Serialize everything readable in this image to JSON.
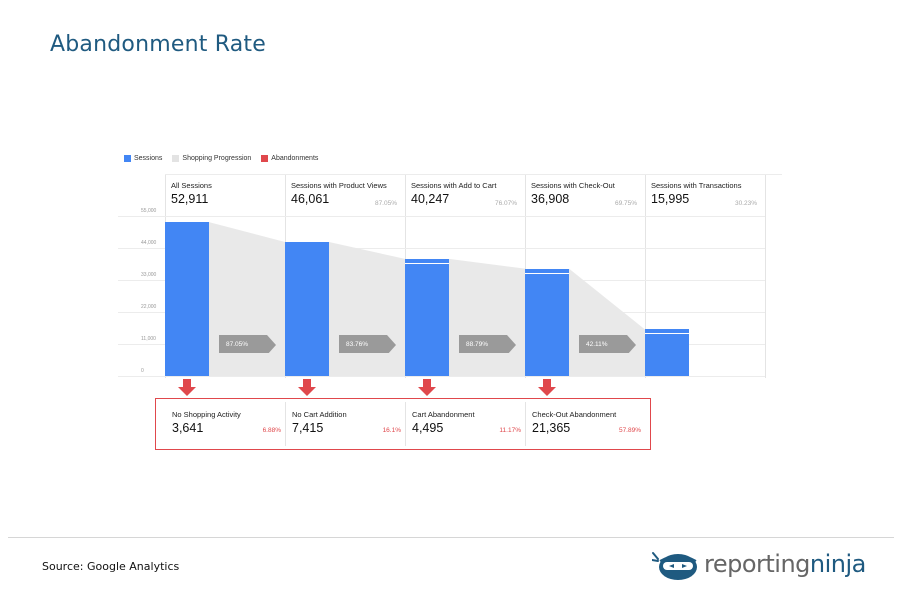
{
  "page": {
    "title": "Abandonment Rate",
    "source": "Source: Google Analytics"
  },
  "logo": {
    "part1": "reporting",
    "part2": "ninja",
    "icon": "ninja-icon"
  },
  "colors": {
    "sessions": "#4286f4",
    "progression": "#e8e8e8",
    "abandonments": "#e0484c",
    "title": "#1f5a80"
  },
  "chart_data": {
    "type": "bar",
    "legend": [
      "Sessions",
      "Shopping Progression",
      "Abandonments"
    ],
    "legend_position": "top-left",
    "y_ticks": [
      "0",
      "11,000",
      "22,000",
      "33,000",
      "44,000",
      "55,000"
    ],
    "ylim": [
      0,
      55000
    ],
    "grid": true,
    "stages": [
      {
        "name": "All Sessions",
        "value": "52,911",
        "v": 52911,
        "pct": ""
      },
      {
        "name": "Sessions with Product Views",
        "value": "46,061",
        "v": 46061,
        "pct": "87.05%"
      },
      {
        "name": "Sessions with Add to Cart",
        "value": "40,247",
        "v": 40247,
        "pct": "76.07%"
      },
      {
        "name": "Sessions with Check-Out",
        "value": "36,908",
        "v": 36908,
        "pct": "69.75%"
      },
      {
        "name": "Sessions with Transactions",
        "value": "15,995",
        "v": 15995,
        "pct": "30.23%"
      }
    ],
    "progression": [
      "87.05%",
      "83.76%",
      "88.79%",
      "42.11%"
    ],
    "abandonments": [
      {
        "name": "No Shopping Activity",
        "value": "3,641",
        "pct": "6.88%"
      },
      {
        "name": "No Cart Addition",
        "value": "7,415",
        "pct": "16.1%"
      },
      {
        "name": "Cart Abandonment",
        "value": "4,495",
        "pct": "11.17%"
      },
      {
        "name": "Check-Out Abandonment",
        "value": "21,365",
        "pct": "57.89%"
      }
    ]
  }
}
